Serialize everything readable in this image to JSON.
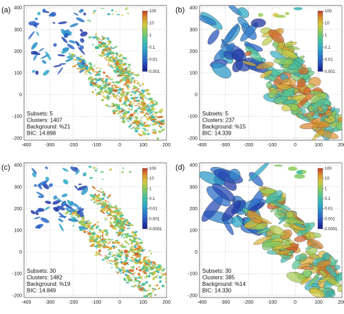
{
  "figure": {
    "colormap": [
      "#1a1a8c",
      "#2e62c8",
      "#2fa8c9",
      "#47c2a0",
      "#8ccb5a",
      "#d6c83d",
      "#d98a2e",
      "#c43a22"
    ]
  },
  "chart_data": [
    {
      "type": "scatter",
      "panel_label": "(a)",
      "xlim": [
        -410,
        200
      ],
      "ylim": [
        -210,
        410
      ],
      "xticks": [
        "-400",
        "-300",
        "-200",
        "-100",
        "0",
        "100",
        "200"
      ],
      "yticks": [
        "400",
        "300",
        "200",
        "100",
        "0",
        "-100",
        "-200"
      ],
      "colorbar": {
        "ticks": [
          "100",
          "10",
          "1",
          "0.1",
          "0.01",
          "0.001"
        ],
        "log_min": -3,
        "log_max": 2
      },
      "annotation": [
        "Subsets: 5",
        "Clusters: 1407",
        "Background: %21",
        "BIC: 14.898"
      ],
      "grid": true,
      "cluster_style": "small"
    },
    {
      "type": "scatter",
      "panel_label": "(b)",
      "xlim": [
        -410,
        200
      ],
      "ylim": [
        -210,
        410
      ],
      "xticks": [
        "-400",
        "-300",
        "-200",
        "-100",
        "0",
        "100",
        "200"
      ],
      "yticks": [
        "400",
        "300",
        "200",
        "100",
        "0",
        "-100",
        "-200"
      ],
      "colorbar": {
        "ticks": [
          "100",
          "10",
          "1",
          "0.1",
          "0.01",
          "0.001"
        ],
        "log_min": -3,
        "log_max": 2
      },
      "annotation": [
        "Subsets: 5",
        "Clusters: 237",
        "Background: %15",
        "BIC: 14.339"
      ],
      "grid": true,
      "cluster_style": "large"
    },
    {
      "type": "scatter",
      "panel_label": "(c)",
      "xlim": [
        -410,
        200
      ],
      "ylim": [
        -210,
        410
      ],
      "xticks": [
        "-400",
        "-300",
        "-200",
        "-100",
        "0",
        "100",
        "200"
      ],
      "yticks": [
        "400",
        "300",
        "200",
        "100",
        "0",
        "-100",
        "-200"
      ],
      "colorbar": {
        "ticks": [
          "100",
          "10",
          "1",
          "0.1",
          "0.01",
          "0.001",
          "0.0001"
        ],
        "log_min": -4,
        "log_max": 2
      },
      "annotation": [
        "Subsets: 30",
        "Clusters: 1482",
        "Background: %19",
        "BIC: 14.849"
      ],
      "grid": true,
      "cluster_style": "small"
    },
    {
      "type": "scatter",
      "panel_label": "(d)",
      "xlim": [
        -410,
        200
      ],
      "ylim": [
        -210,
        410
      ],
      "xticks": [
        "-400",
        "-300",
        "-200",
        "-100",
        "0",
        "100",
        "200"
      ],
      "yticks": [
        "400",
        "300",
        "200",
        "100",
        "0",
        "-100",
        "-200"
      ],
      "colorbar": {
        "ticks": [
          "100",
          "10",
          "1",
          "0.1",
          "0.01",
          "0.001",
          "0.0001"
        ],
        "log_min": -4,
        "log_max": 2
      },
      "annotation": [
        "Subsets: 30",
        "Clusters: 385",
        "Background: %14",
        "BIC: 14.330"
      ],
      "grid": true,
      "cluster_style": "large"
    }
  ]
}
